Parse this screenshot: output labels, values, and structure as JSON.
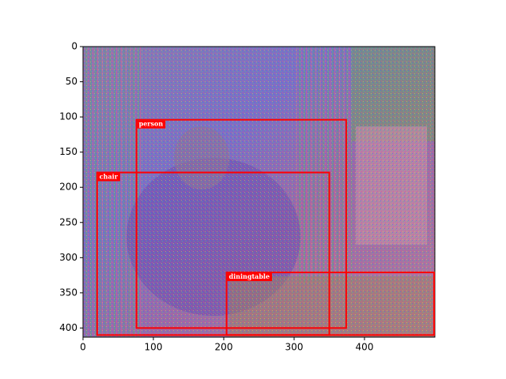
{
  "chart_data": {
    "type": "image",
    "xlim": [
      0,
      500
    ],
    "ylim": [
      413,
      0
    ],
    "xticks": [
      0,
      100,
      200,
      300,
      400
    ],
    "yticks": [
      0,
      50,
      100,
      150,
      200,
      250,
      300,
      350,
      400
    ],
    "box_color": "#ff0000",
    "boxes": [
      {
        "label": "person",
        "xmin": 76,
        "ymin": 104,
        "xmax": 374,
        "ymax": 400
      },
      {
        "label": "chair",
        "xmin": 20,
        "ymin": 179,
        "xmax": 350,
        "ymax": 410
      },
      {
        "label": "diningtable",
        "xmin": 204,
        "ymin": 321,
        "xmax": 499,
        "ymax": 410
      }
    ]
  }
}
